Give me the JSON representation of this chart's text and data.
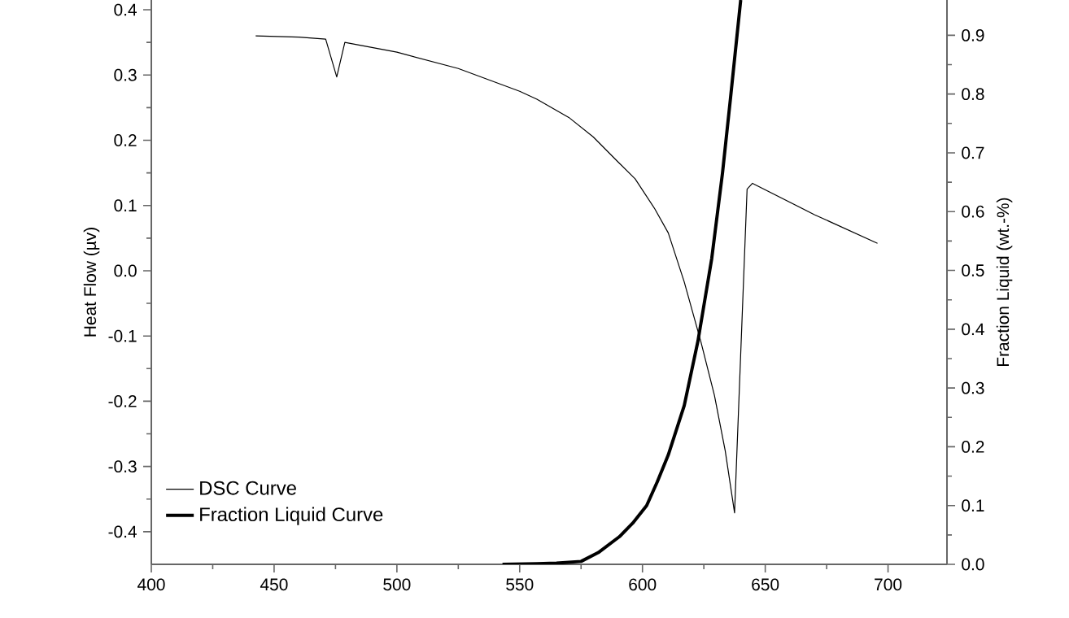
{
  "chart_data": {
    "type": "line",
    "ylabel": "Heat Flow (µv)",
    "y2label": "Fraction Liquid (wt.-%)",
    "legend": "bottom left",
    "xlim": [
      400,
      724
    ],
    "xticks": [
      400,
      450,
      500,
      550,
      600,
      650,
      700
    ],
    "ylim": [
      -0.45,
      0.415
    ],
    "yticks": [
      -0.4,
      -0.3,
      -0.2,
      -0.1,
      {
        "value": 0,
        "label": "0.0"
      },
      0.1,
      0.2,
      0.3,
      0.4
    ],
    "y2lim": [
      0,
      0.96
    ],
    "y2ticks": [
      {
        "value": 0,
        "label": "0.0"
      },
      0.1,
      0.2,
      0.3,
      0.4,
      0.5,
      0.6,
      0.7,
      0.8,
      0.9
    ],
    "series": [
      {
        "name": "DSC Curve",
        "color": "#000000",
        "x": [
          442.5,
          460,
          471,
          475.5,
          478.8,
          500,
          525,
          550,
          557,
          570,
          580,
          590,
          597,
          605,
          610.5,
          617,
          623.8,
          629.3,
          633.7,
          637.5,
          642.6,
          644.8,
          670,
          695.7
        ],
        "values": [
          0.36,
          0.358,
          0.355,
          0.297,
          0.35,
          0.335,
          0.31,
          0.275,
          0.263,
          0.235,
          0.205,
          0.167,
          0.141,
          0.095,
          0.058,
          -0.017,
          -0.109,
          -0.191,
          -0.276,
          -0.371,
          0.125,
          0.134,
          0.086,
          0.042
        ]
      },
      {
        "name": "Fraction Liquid Curve",
        "color": "#000000",
        "axis": "y2",
        "x": [
          543,
          557,
          565,
          575,
          582,
          590.6,
          596,
          601.7,
          606,
          610.5,
          617,
          622.6,
          628.2,
          632.6,
          635.9,
          640
        ],
        "values": [
          0,
          0.001,
          0.002,
          0.005,
          0.02,
          0.047,
          0.07,
          0.1,
          0.14,
          0.186,
          0.27,
          0.38,
          0.52,
          0.666,
          0.795,
          0.96
        ]
      }
    ]
  }
}
